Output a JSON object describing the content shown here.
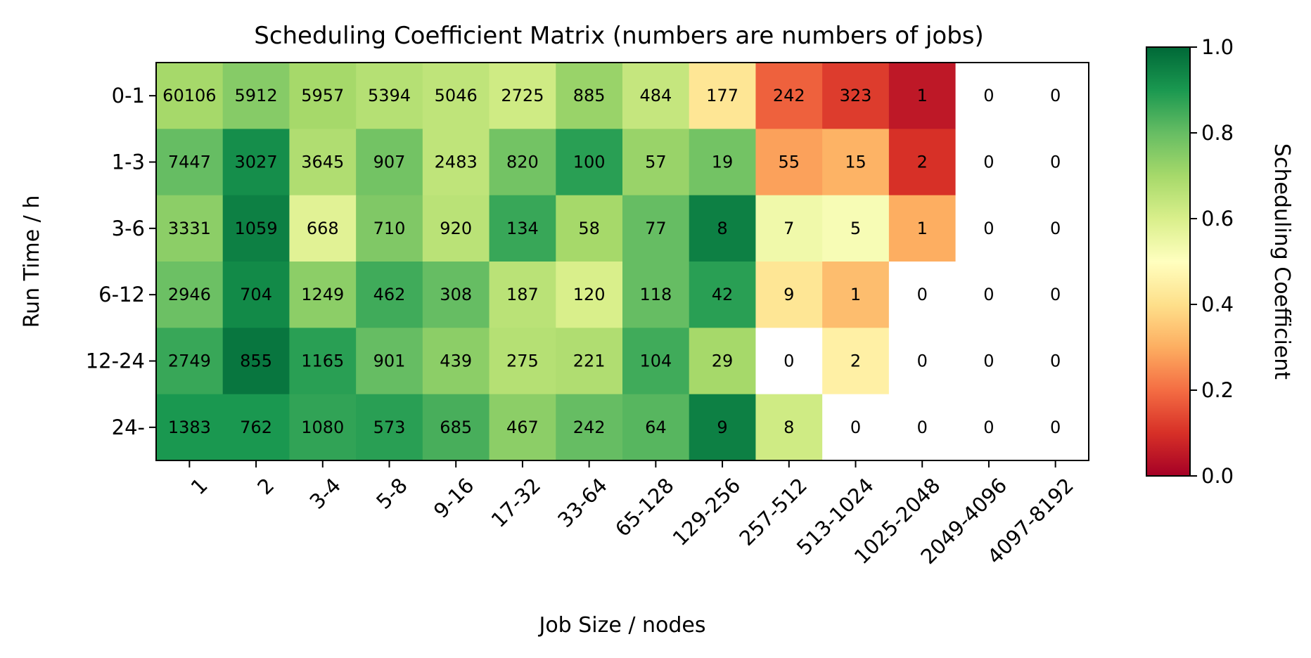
{
  "chart_data": {
    "type": "heatmap",
    "title": "Scheduling Coefficient Matrix (numbers are numbers of jobs)",
    "xlabel": "Job Size / nodes",
    "ylabel": "Run Time / h",
    "x_categories": [
      "1",
      "2",
      "3-4",
      "5-8",
      "9-16",
      "17-32",
      "33-64",
      "65-128",
      "129-256",
      "257-512",
      "513-1024",
      "1025-2048",
      "2049-4096",
      "4097-8192"
    ],
    "y_categories": [
      "0-1",
      "1-3",
      "3-6",
      "6-12",
      "12-24",
      "24-"
    ],
    "counts": [
      [
        60106,
        5912,
        5957,
        5394,
        5046,
        2725,
        885,
        484,
        177,
        242,
        323,
        1,
        0,
        0
      ],
      [
        7447,
        3027,
        3645,
        907,
        2483,
        820,
        100,
        57,
        19,
        55,
        15,
        2,
        0,
        0
      ],
      [
        3331,
        1059,
        668,
        710,
        920,
        134,
        58,
        77,
        8,
        7,
        5,
        1,
        0,
        0
      ],
      [
        2946,
        704,
        1249,
        462,
        308,
        187,
        120,
        118,
        42,
        9,
        1,
        0,
        0,
        0
      ],
      [
        2749,
        855,
        1165,
        901,
        439,
        275,
        221,
        104,
        29,
        0,
        2,
        0,
        0,
        0
      ],
      [
        1383,
        762,
        1080,
        573,
        685,
        467,
        242,
        64,
        9,
        8,
        0,
        0,
        0,
        0
      ]
    ],
    "coefficients": [
      [
        0.7,
        0.75,
        0.7,
        0.67,
        0.65,
        0.62,
        0.72,
        0.64,
        0.42,
        0.18,
        0.12,
        0.05,
        null,
        null
      ],
      [
        0.8,
        0.92,
        0.68,
        0.78,
        0.65,
        0.78,
        0.88,
        0.72,
        0.78,
        0.28,
        0.31,
        0.1,
        null,
        null
      ],
      [
        0.74,
        0.95,
        0.58,
        0.76,
        0.66,
        0.86,
        0.7,
        0.8,
        0.95,
        0.54,
        0.52,
        0.3,
        null,
        null
      ],
      [
        0.79,
        0.93,
        0.74,
        0.85,
        0.8,
        0.66,
        0.6,
        0.8,
        0.88,
        0.42,
        0.33,
        null,
        null,
        null
      ],
      [
        0.86,
        0.97,
        0.88,
        0.8,
        0.74,
        0.67,
        0.68,
        0.85,
        0.7,
        null,
        0.45,
        null,
        null,
        null
      ],
      [
        0.9,
        0.9,
        0.87,
        0.88,
        0.84,
        0.74,
        0.8,
        0.82,
        0.95,
        0.62,
        null,
        null,
        null,
        null
      ]
    ],
    "colorbar": {
      "label": "Scheduling Coefficient",
      "min": 0.0,
      "max": 1.0,
      "ticks": [
        "0.0",
        "0.2",
        "0.4",
        "0.6",
        "0.8",
        "1.0"
      ],
      "colormap": "RdYlGn"
    }
  }
}
